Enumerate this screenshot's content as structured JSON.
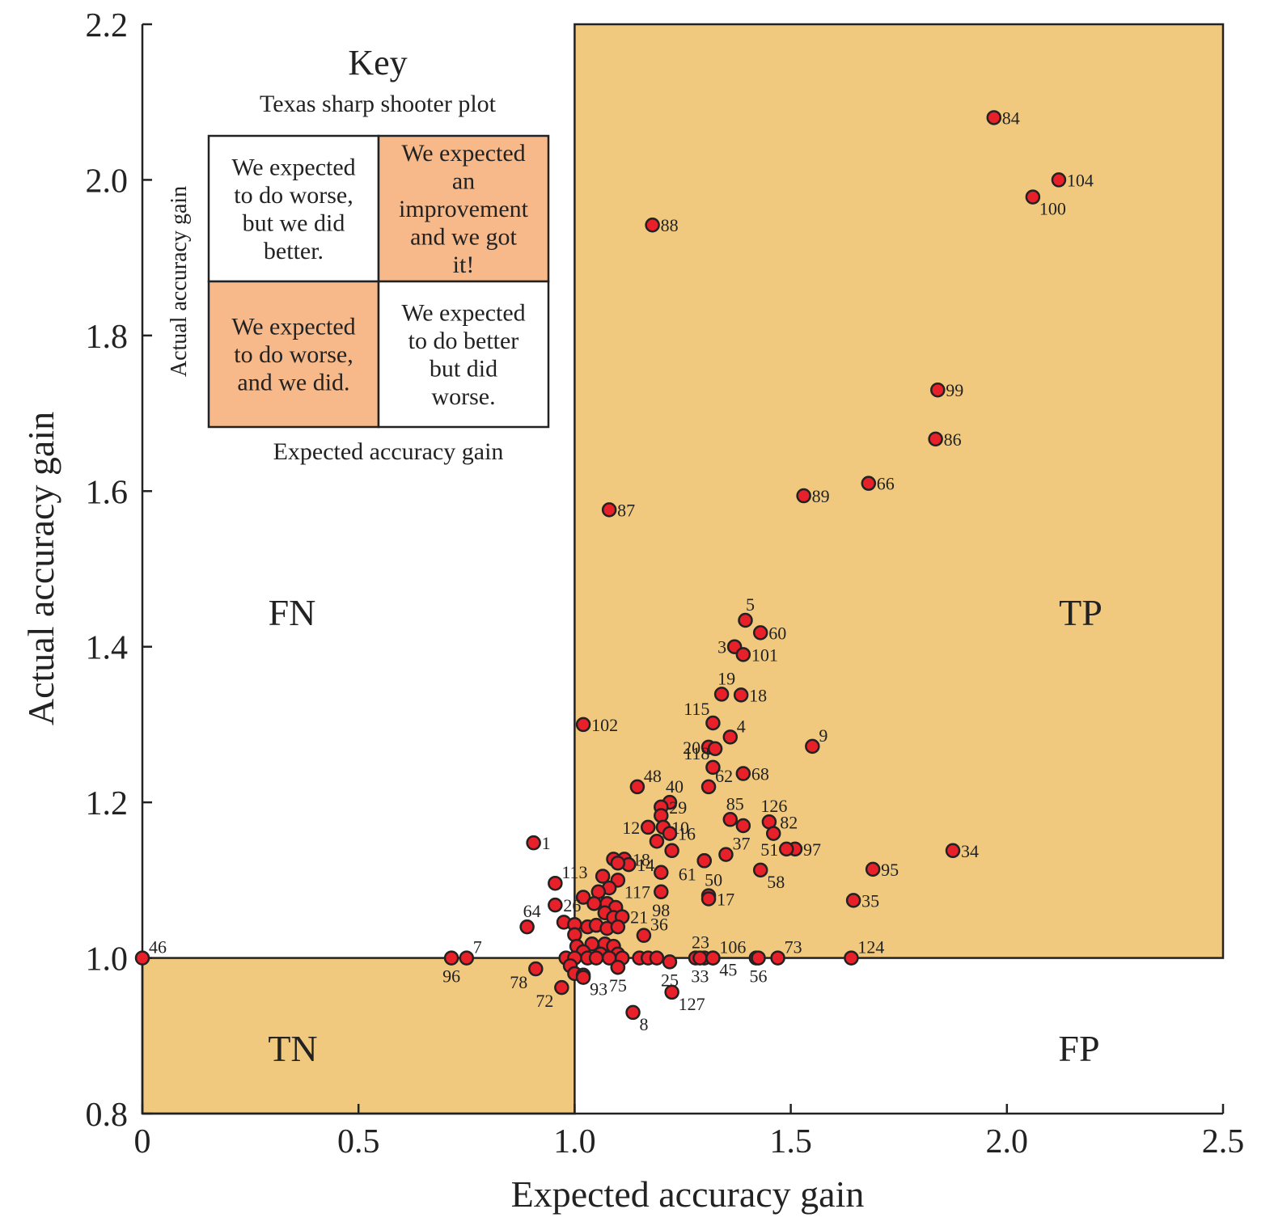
{
  "chart_data": {
    "type": "scatter",
    "xlabel": "Expected accuracy gain",
    "ylabel": "Actual accuracy gain",
    "xlim": [
      0,
      2.5
    ],
    "ylim": [
      0.8,
      2.2
    ],
    "x_ticks": [
      {
        "value": 0,
        "label": "0"
      },
      {
        "value": 0.5,
        "label": "0.5"
      },
      {
        "value": 1.0,
        "label": "1.0"
      },
      {
        "value": 1.5,
        "label": "1.5"
      },
      {
        "value": 2.0,
        "label": "2.0"
      },
      {
        "value": 2.5,
        "label": "2.5"
      }
    ],
    "y_ticks": [
      {
        "value": 0.8,
        "label": "0.8"
      },
      {
        "value": 1.0,
        "label": "1.0"
      },
      {
        "value": 1.2,
        "label": "1.2"
      },
      {
        "value": 1.4,
        "label": "1.4"
      },
      {
        "value": 1.6,
        "label": "1.6"
      },
      {
        "value": 1.8,
        "label": "1.8"
      },
      {
        "value": 2.0,
        "label": "2.0"
      },
      {
        "value": 2.2,
        "label": "2.2"
      }
    ],
    "quadrant_split": {
      "x": 1.0,
      "y": 1.0
    },
    "quadrant_labels": {
      "TP": "TP",
      "TN": "TN",
      "FP": "FP",
      "FN": "FN"
    },
    "colors": {
      "shade": "#f0c97e",
      "point": "#e8202a",
      "point_edge": "#222222",
      "key_shade": "#f8b98a"
    },
    "points": [
      {
        "id": "84",
        "x": 1.97,
        "y": 2.08,
        "pos": "r"
      },
      {
        "id": "104",
        "x": 2.12,
        "y": 2.0,
        "pos": "r"
      },
      {
        "id": "100",
        "x": 2.06,
        "y": 1.978,
        "pos": "br"
      },
      {
        "id": "88",
        "x": 1.18,
        "y": 1.942,
        "pos": "r"
      },
      {
        "id": "99",
        "x": 1.84,
        "y": 1.73,
        "pos": "r"
      },
      {
        "id": "86",
        "x": 1.835,
        "y": 1.667,
        "pos": "r"
      },
      {
        "id": "66",
        "x": 1.68,
        "y": 1.61,
        "pos": "r"
      },
      {
        "id": "89",
        "x": 1.53,
        "y": 1.594,
        "pos": "r"
      },
      {
        "id": "87",
        "x": 1.08,
        "y": 1.576,
        "pos": "r"
      },
      {
        "id": "5",
        "x": 1.395,
        "y": 1.434,
        "pos": "t"
      },
      {
        "id": "60",
        "x": 1.43,
        "y": 1.418,
        "pos": "r"
      },
      {
        "id": "3",
        "x": 1.37,
        "y": 1.4,
        "pos": "l"
      },
      {
        "id": "101",
        "x": 1.39,
        "y": 1.39,
        "pos": "r"
      },
      {
        "id": "19",
        "x": 1.34,
        "y": 1.339,
        "pos": "t"
      },
      {
        "id": "18",
        "x": 1.385,
        "y": 1.338,
        "pos": "r"
      },
      {
        "id": "115",
        "x": 1.32,
        "y": 1.302,
        "pos": "tl"
      },
      {
        "id": "102",
        "x": 1.02,
        "y": 1.3,
        "pos": "r"
      },
      {
        "id": "4",
        "x": 1.36,
        "y": 1.284,
        "pos": "tr"
      },
      {
        "id": "20",
        "x": 1.31,
        "y": 1.271,
        "pos": "l"
      },
      {
        "id": "",
        "x": 1.325,
        "y": 1.269,
        "pos": "r"
      },
      {
        "id": "9",
        "x": 1.55,
        "y": 1.272,
        "pos": "tr"
      },
      {
        "id": "118",
        "x": 1.32,
        "y": 1.245,
        "pos": "tl"
      },
      {
        "id": "68",
        "x": 1.39,
        "y": 1.237,
        "pos": "r"
      },
      {
        "id": "48",
        "x": 1.145,
        "y": 1.22,
        "pos": "tr"
      },
      {
        "id": "62",
        "x": 1.31,
        "y": 1.22,
        "pos": "tr"
      },
      {
        "id": "40",
        "x": 1.22,
        "y": 1.2,
        "pos": "t"
      },
      {
        "id": "29",
        "x": 1.2,
        "y": 1.194,
        "pos": "r"
      },
      {
        "id": "",
        "x": 1.2,
        "y": 1.183,
        "pos": "r"
      },
      {
        "id": "85",
        "x": 1.36,
        "y": 1.178,
        "pos": "t"
      },
      {
        "id": "126",
        "x": 1.45,
        "y": 1.175,
        "pos": "t"
      },
      {
        "id": "",
        "x": 1.39,
        "y": 1.17,
        "pos": "r"
      },
      {
        "id": "82",
        "x": 1.46,
        "y": 1.16,
        "pos": "tr"
      },
      {
        "id": "12",
        "x": 1.17,
        "y": 1.168,
        "pos": "l"
      },
      {
        "id": "10",
        "x": 1.205,
        "y": 1.168,
        "pos": "r"
      },
      {
        "id": "16",
        "x": 1.22,
        "y": 1.16,
        "pos": "r"
      },
      {
        "id": "",
        "x": 1.19,
        "y": 1.15,
        "pos": "r"
      },
      {
        "id": "97",
        "x": 1.51,
        "y": 1.14,
        "pos": "r"
      },
      {
        "id": "51",
        "x": 1.49,
        "y": 1.14,
        "pos": "l"
      },
      {
        "id": "",
        "x": 1.225,
        "y": 1.138,
        "pos": "r"
      },
      {
        "id": "37",
        "x": 1.35,
        "y": 1.133,
        "pos": "tr"
      },
      {
        "id": "34",
        "x": 1.875,
        "y": 1.138,
        "pos": "r"
      },
      {
        "id": "1",
        "x": 0.905,
        "y": 1.148,
        "pos": "r"
      },
      {
        "id": "",
        "x": 1.3,
        "y": 1.125,
        "pos": "r"
      },
      {
        "id": "61",
        "x": 1.3,
        "y": 1.125,
        "pos": "bl"
      },
      {
        "id": "",
        "x": 1.09,
        "y": 1.127,
        "pos": "r"
      },
      {
        "id": "18",
        "x": 1.115,
        "y": 1.127,
        "pos": "r"
      },
      {
        "id": "14",
        "x": 1.125,
        "y": 1.12,
        "pos": "r"
      },
      {
        "id": "",
        "x": 1.1,
        "y": 1.122,
        "pos": "r"
      },
      {
        "id": "95",
        "x": 1.69,
        "y": 1.114,
        "pos": "r"
      },
      {
        "id": "58",
        "x": 1.43,
        "y": 1.113,
        "pos": "br"
      },
      {
        "id": "",
        "x": 1.2,
        "y": 1.11,
        "pos": "r"
      },
      {
        "id": "113",
        "x": 0.955,
        "y": 1.096,
        "pos": "tr"
      },
      {
        "id": "",
        "x": 1.065,
        "y": 1.105,
        "pos": "r"
      },
      {
        "id": "117",
        "x": 1.1,
        "y": 1.1,
        "pos": "br"
      },
      {
        "id": "",
        "x": 1.08,
        "y": 1.09,
        "pos": "r"
      },
      {
        "id": "",
        "x": 1.055,
        "y": 1.085,
        "pos": "r"
      },
      {
        "id": "50",
        "x": 1.31,
        "y": 1.08,
        "pos": "t"
      },
      {
        "id": "98",
        "x": 1.2,
        "y": 1.085,
        "pos": "b"
      },
      {
        "id": "",
        "x": 1.02,
        "y": 1.078,
        "pos": "r"
      },
      {
        "id": "17",
        "x": 1.31,
        "y": 1.076,
        "pos": "r"
      },
      {
        "id": "35",
        "x": 1.645,
        "y": 1.074,
        "pos": "r"
      },
      {
        "id": "",
        "x": 1.045,
        "y": 1.07,
        "pos": "r"
      },
      {
        "id": "",
        "x": 1.075,
        "y": 1.07,
        "pos": "r"
      },
      {
        "id": "26",
        "x": 0.955,
        "y": 1.068,
        "pos": "r"
      },
      {
        "id": "",
        "x": 1.095,
        "y": 1.065,
        "pos": "r"
      },
      {
        "id": "",
        "x": 1.07,
        "y": 1.058,
        "pos": "r"
      },
      {
        "id": "",
        "x": 1.09,
        "y": 1.052,
        "pos": "r"
      },
      {
        "id": "21",
        "x": 1.11,
        "y": 1.053,
        "pos": "r"
      },
      {
        "id": "64",
        "x": 0.89,
        "y": 1.04,
        "pos": "t"
      },
      {
        "id": "",
        "x": 0.975,
        "y": 1.046,
        "pos": "r"
      },
      {
        "id": "",
        "x": 1.0,
        "y": 1.043,
        "pos": "r"
      },
      {
        "id": "",
        "x": 1.03,
        "y": 1.04,
        "pos": "r"
      },
      {
        "id": "",
        "x": 1.05,
        "y": 1.042,
        "pos": "r"
      },
      {
        "id": "",
        "x": 1.075,
        "y": 1.038,
        "pos": "r"
      },
      {
        "id": "",
        "x": 1.1,
        "y": 1.04,
        "pos": "r"
      },
      {
        "id": "36",
        "x": 1.16,
        "y": 1.029,
        "pos": "tr"
      },
      {
        "id": "",
        "x": 1.0,
        "y": 1.03,
        "pos": "r"
      },
      {
        "id": "",
        "x": 1.005,
        "y": 1.015,
        "pos": "r"
      },
      {
        "id": "",
        "x": 1.04,
        "y": 1.018,
        "pos": "r"
      },
      {
        "id": "",
        "x": 1.07,
        "y": 1.018,
        "pos": "r"
      },
      {
        "id": "",
        "x": 1.09,
        "y": 1.015,
        "pos": "r"
      },
      {
        "id": "",
        "x": 1.02,
        "y": 1.008,
        "pos": "r"
      },
      {
        "id": "",
        "x": 1.06,
        "y": 1.005,
        "pos": "r"
      },
      {
        "id": "",
        "x": 1.1,
        "y": 1.005,
        "pos": "r"
      },
      {
        "id": "",
        "x": 0.98,
        "y": 1.0,
        "pos": "r"
      },
      {
        "id": "",
        "x": 1.0,
        "y": 1.0,
        "pos": "r"
      },
      {
        "id": "",
        "x": 1.03,
        "y": 1.0,
        "pos": "r"
      },
      {
        "id": "",
        "x": 1.05,
        "y": 1.0,
        "pos": "r"
      },
      {
        "id": "",
        "x": 1.08,
        "y": 1.0,
        "pos": "r"
      },
      {
        "id": "",
        "x": 1.11,
        "y": 1.0,
        "pos": "r"
      },
      {
        "id": "",
        "x": 1.15,
        "y": 1.0,
        "pos": "r"
      },
      {
        "id": "",
        "x": 1.17,
        "y": 1.0,
        "pos": "r"
      },
      {
        "id": "",
        "x": 1.19,
        "y": 1.0,
        "pos": "r"
      },
      {
        "id": "23",
        "x": 1.28,
        "y": 1.0,
        "pos": "t"
      },
      {
        "id": "106",
        "x": 1.32,
        "y": 1.0,
        "pos": "tr"
      },
      {
        "id": "",
        "x": 1.3,
        "y": 1.0,
        "pos": "r"
      },
      {
        "id": "73",
        "x": 1.47,
        "y": 1.0,
        "pos": "tr"
      },
      {
        "id": "",
        "x": 1.42,
        "y": 1.0,
        "pos": "r"
      },
      {
        "id": "124",
        "x": 1.64,
        "y": 1.0,
        "pos": "tr"
      },
      {
        "id": "46",
        "x": 0.0,
        "y": 1.0,
        "pos": "tr"
      },
      {
        "id": "7",
        "x": 0.75,
        "y": 1.0,
        "pos": "tr"
      },
      {
        "id": "96",
        "x": 0.715,
        "y": 1.0,
        "pos": "b"
      },
      {
        "id": "",
        "x": 0.99,
        "y": 0.99,
        "pos": "r"
      },
      {
        "id": "",
        "x": 1.0,
        "y": 0.98,
        "pos": "r"
      },
      {
        "id": "",
        "x": 1.02,
        "y": 0.978,
        "pos": "r"
      },
      {
        "id": "78",
        "x": 0.91,
        "y": 0.986,
        "pos": "bl"
      },
      {
        "id": "",
        "x": 1.1,
        "y": 0.988,
        "pos": "r"
      },
      {
        "id": "93",
        "x": 1.02,
        "y": 0.975,
        "pos": "br"
      },
      {
        "id": "75",
        "x": 1.1,
        "y": 0.988,
        "pos": "b"
      },
      {
        "id": "25",
        "x": 1.22,
        "y": 0.995,
        "pos": "b"
      },
      {
        "id": "33",
        "x": 1.29,
        "y": 1.0,
        "pos": "b"
      },
      {
        "id": "45",
        "x": 1.32,
        "y": 1.0,
        "pos": "br"
      },
      {
        "id": "56",
        "x": 1.425,
        "y": 1.0,
        "pos": "b"
      },
      {
        "id": "72",
        "x": 0.97,
        "y": 0.962,
        "pos": "bl"
      },
      {
        "id": "127",
        "x": 1.225,
        "y": 0.956,
        "pos": "br"
      },
      {
        "id": "8",
        "x": 1.135,
        "y": 0.93,
        "pos": "br"
      }
    ]
  },
  "key": {
    "title": "Key",
    "subtitle": "Texas sharp shooter plot",
    "y_axis_label": "Actual accuracy gain",
    "x_axis_label": "Expected accuracy gain",
    "top_left": [
      "We expected",
      "to do worse,",
      "but we did",
      "better."
    ],
    "top_right": [
      "We expected",
      "an",
      "improvement",
      "and we got",
      "it!"
    ],
    "bottom_left": [
      "We expected",
      "to do worse,",
      "and we did."
    ],
    "bottom_right": [
      "We expected",
      "to do better",
      "but did",
      "worse."
    ]
  }
}
